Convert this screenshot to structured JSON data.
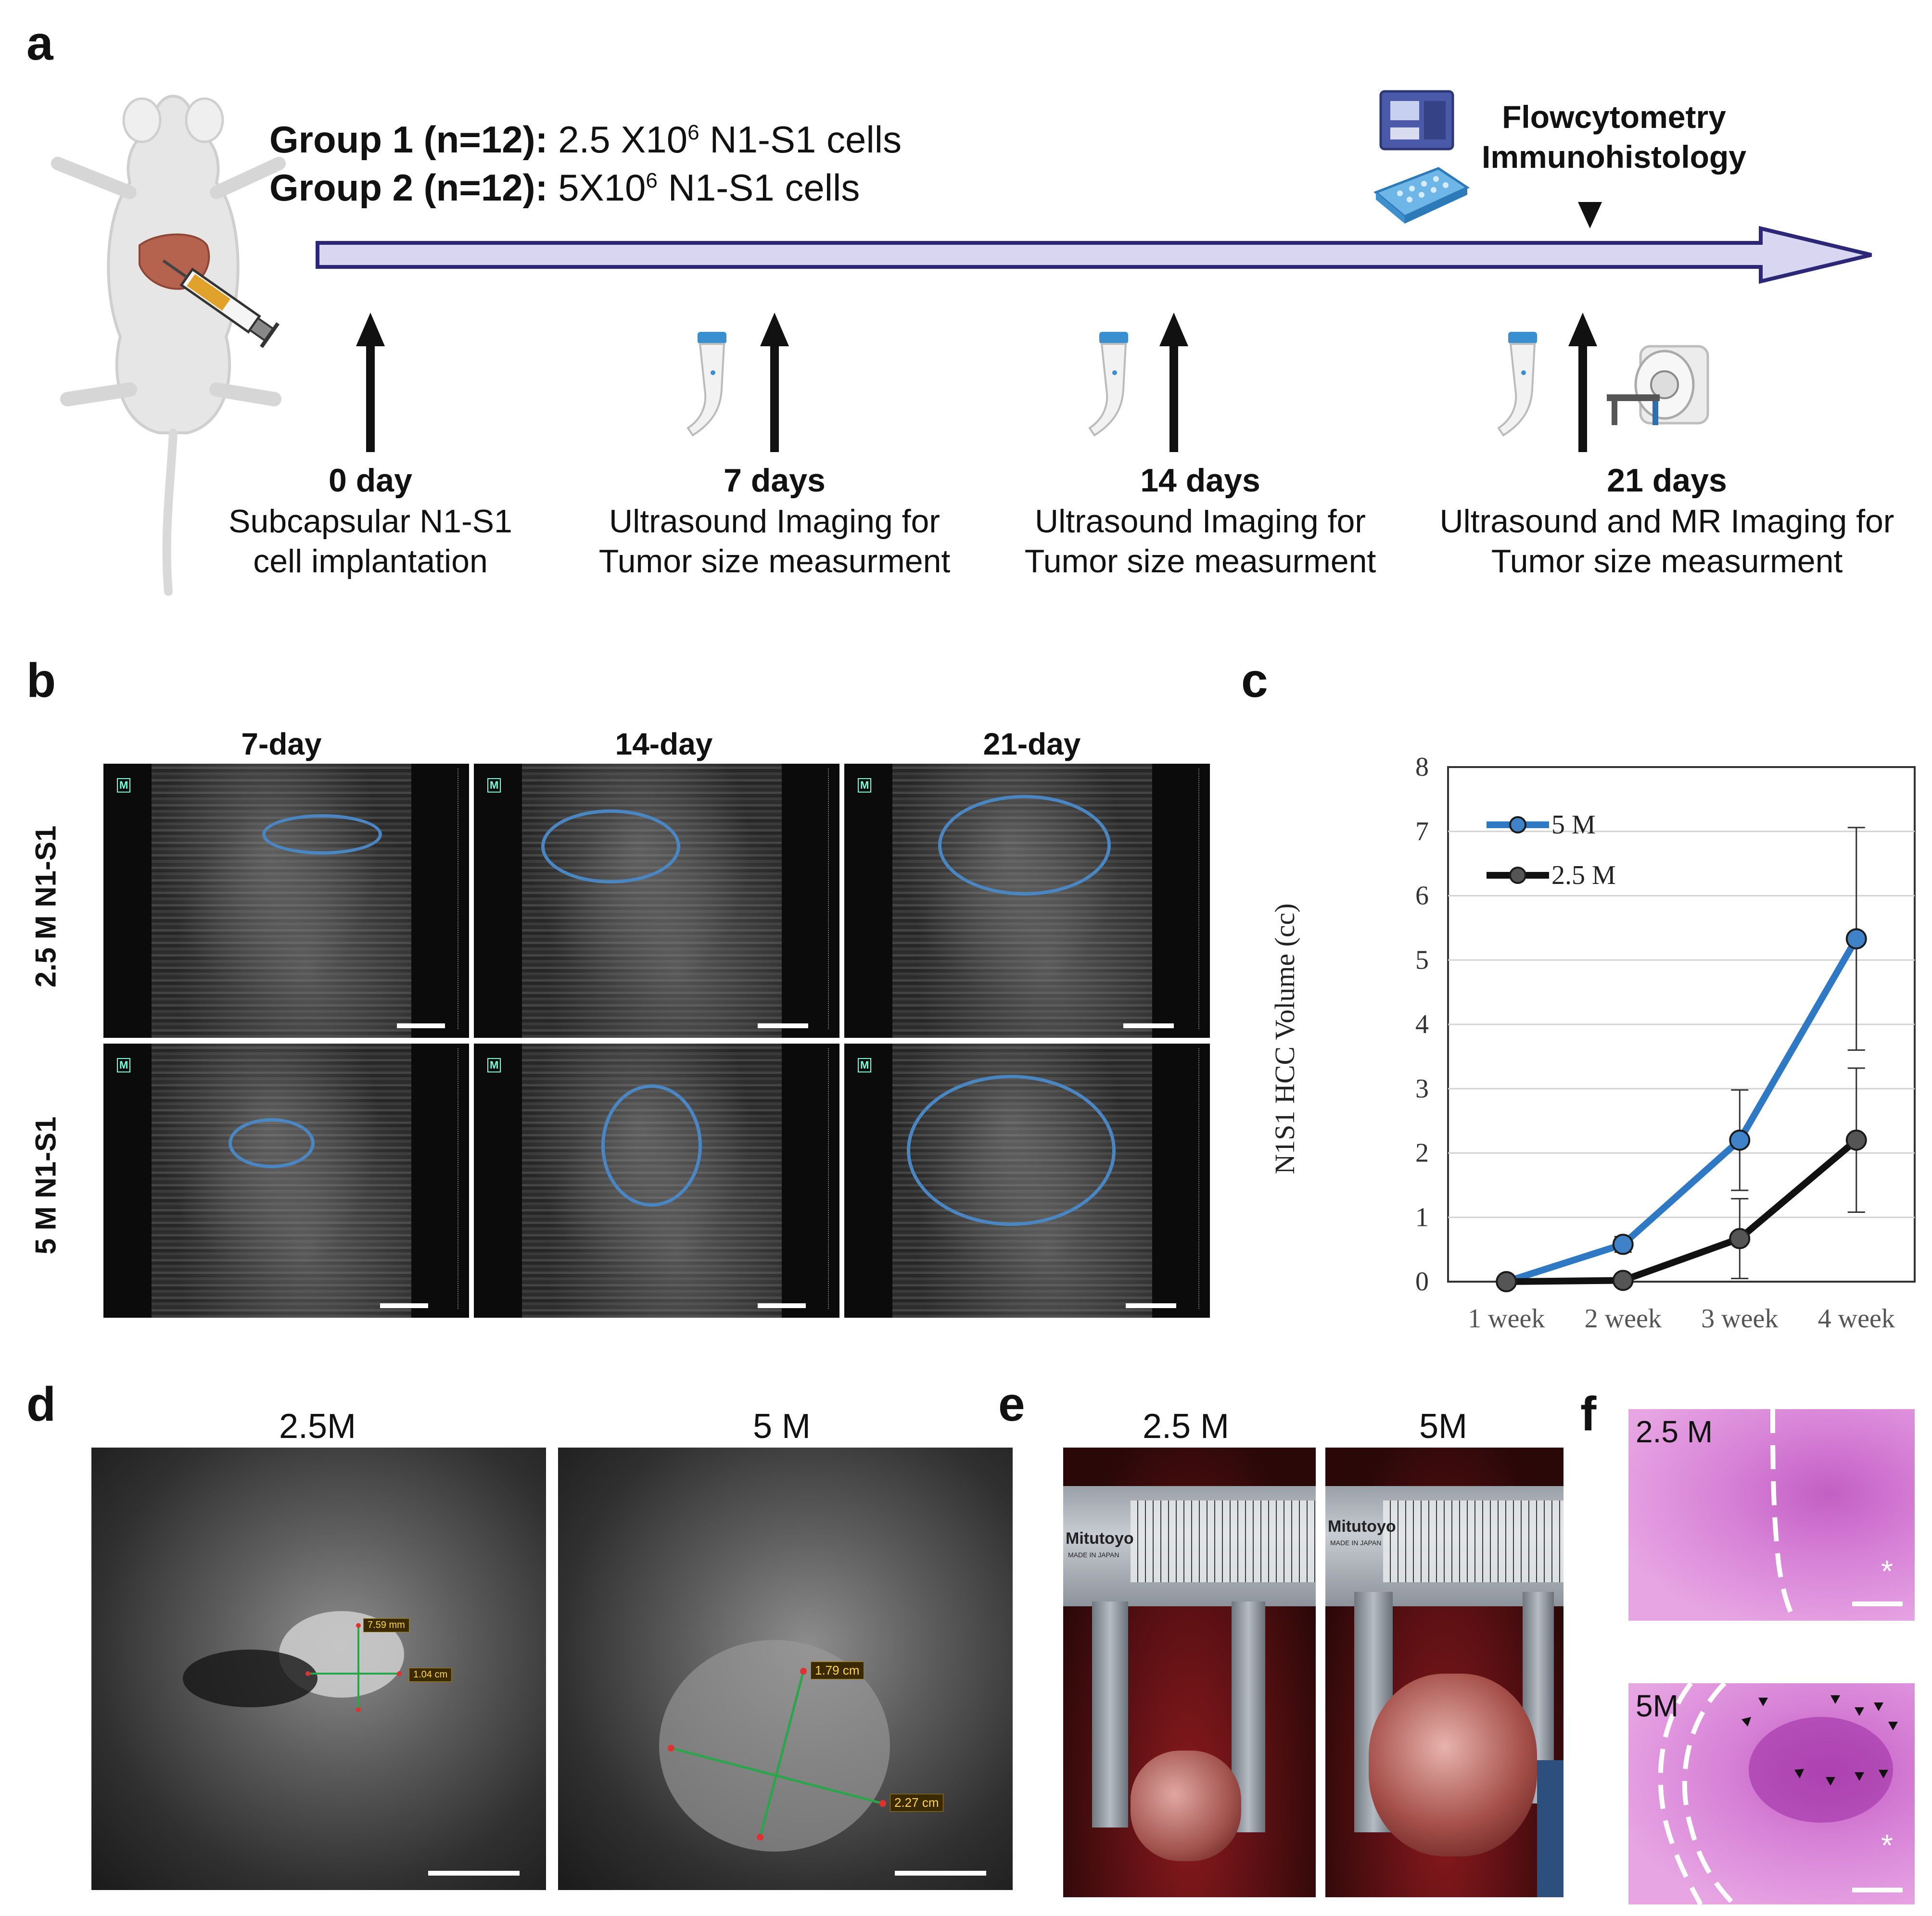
{
  "panels": {
    "a": "a",
    "b": "b",
    "c": "c",
    "d": "d",
    "e": "e",
    "f": "f"
  },
  "panel_a": {
    "group1_label": "Group 1 (n=12):",
    "group1_cells_pre": "2.5 X10",
    "group1_cells_sup": "6",
    "group1_cells_post": " N1-S1 cells",
    "group2_label": "Group 2 (n=12):",
    "group2_cells_pre": "5X10",
    "group2_cells_sup": "6",
    "group2_cells_post": " N1-S1 cells",
    "endpoint_line1": "Flowcytometry",
    "endpoint_line2": "Immunohistology",
    "timepoints": [
      {
        "title": "0 day",
        "line1": "Subcapsular N1-S1",
        "line2": "cell implantation"
      },
      {
        "title": "7 days",
        "line1": "Ultrasound Imaging for",
        "line2": "Tumor size measurment"
      },
      {
        "title": "14 days",
        "line1": "Ultrasound Imaging for",
        "line2": "Tumor size measurment"
      },
      {
        "title": "21 days",
        "line1": "Ultrasound and MR Imaging for",
        "line2": "Tumor size measurment"
      }
    ]
  },
  "panel_b": {
    "col_labels": [
      "7-day",
      "14-day",
      "21-day"
    ],
    "row_labels": [
      "2.5 M N1-S1",
      "5 M N1-S1"
    ],
    "marker": "M"
  },
  "panel_d": {
    "labels": [
      "2.5M",
      "5 M"
    ],
    "measure_small_a": "7.59 mm",
    "measure_small_b": "1.04 cm",
    "measure_large_a": "1.79 cm",
    "measure_large_b": "2.27 cm"
  },
  "panel_e": {
    "labels": [
      "2.5 M",
      "5M"
    ],
    "caliper_brand": "Mitutoyo",
    "caliper_sub": "MADE IN JAPAN"
  },
  "panel_f": {
    "labels": [
      "2.5 M",
      "5M"
    ],
    "asterisk": "*"
  },
  "chart_data": {
    "type": "line",
    "categories": [
      "1 week",
      "2 week",
      "3 week",
      "4 week"
    ],
    "ylabel": "N1S1 HCC Volume (cc)",
    "xlabel": "",
    "ylim": [
      0,
      8
    ],
    "yticks": [
      0,
      1,
      2,
      3,
      4,
      5,
      6,
      7,
      8
    ],
    "grid": true,
    "legend_position": "top-left",
    "series": [
      {
        "name": "5 M",
        "color": "#2f78c4",
        "values": [
          0.0,
          0.58,
          2.2,
          5.33
        ],
        "error": [
          0.0,
          0.12,
          0.78,
          1.73
        ]
      },
      {
        "name": "2.5 M",
        "color": "#111111",
        "values": [
          0.0,
          0.02,
          0.67,
          2.2
        ],
        "error": [
          0.0,
          0.0,
          0.62,
          1.12
        ]
      }
    ]
  }
}
